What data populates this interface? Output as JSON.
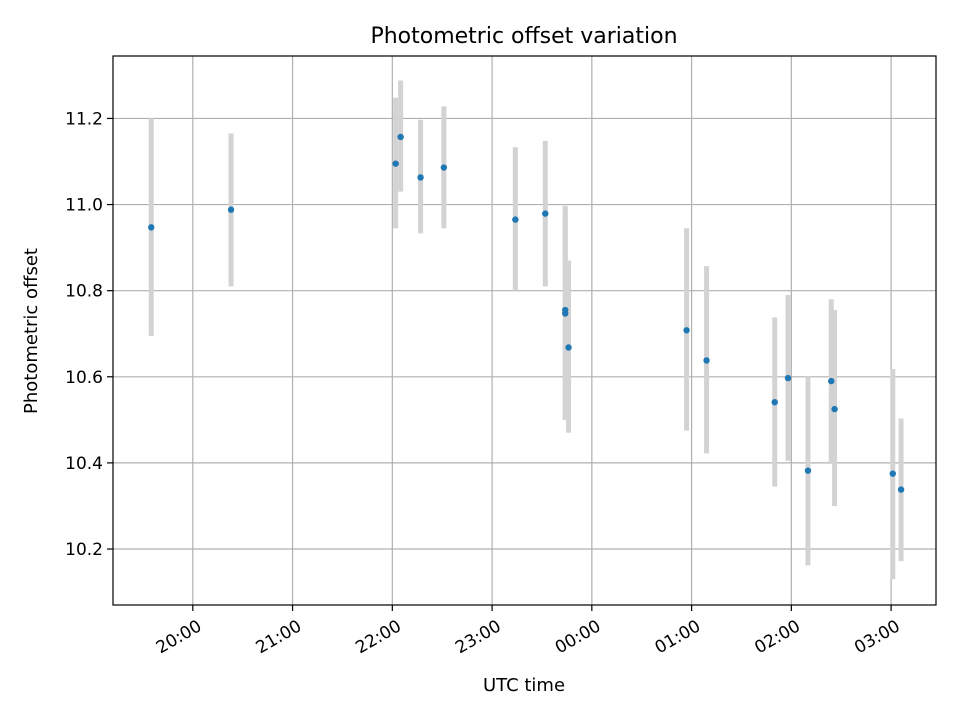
{
  "chart_data": {
    "type": "scatter",
    "title": "Photometric offset variation",
    "xlabel": "UTC time",
    "ylabel": "Photometric offset",
    "x_tick_labels": [
      "20:00",
      "21:00",
      "22:00",
      "23:00",
      "00:00",
      "01:00",
      "02:00",
      "03:00"
    ],
    "y_tick_labels": [
      "10.2",
      "10.4",
      "10.6",
      "10.8",
      "11.0",
      "11.2"
    ],
    "y_ticks": [
      10.2,
      10.4,
      10.6,
      10.8,
      11.0,
      11.2
    ],
    "ylim": [
      10.07,
      11.345
    ],
    "xlim": [
      "19:12",
      "03:27"
    ],
    "grid": true,
    "marker_color": "#1f77b4",
    "errorbar_color": "#d3d3d3",
    "points": [
      {
        "x": "19:35",
        "y": 10.947,
        "ylow": 10.695,
        "yhigh": 11.2
      },
      {
        "x": "20:23",
        "y": 10.988,
        "ylow": 10.81,
        "yhigh": 11.165
      },
      {
        "x": "22:02",
        "y": 11.095,
        "ylow": 10.945,
        "yhigh": 11.248
      },
      {
        "x": "22:05",
        "y": 11.157,
        "ylow": 11.03,
        "yhigh": 11.288
      },
      {
        "x": "22:17",
        "y": 11.063,
        "ylow": 10.933,
        "yhigh": 11.197
      },
      {
        "x": "22:31",
        "y": 11.086,
        "ylow": 10.945,
        "yhigh": 11.228
      },
      {
        "x": "23:14",
        "y": 10.965,
        "ylow": 10.8,
        "yhigh": 11.133
      },
      {
        "x": "23:32",
        "y": 10.979,
        "ylow": 10.81,
        "yhigh": 11.148
      },
      {
        "x": "23:44",
        "y": 10.755,
        "ylow": 10.5,
        "yhigh": 10.997
      },
      {
        "x": "23:44",
        "y": 10.747,
        "ylow": 10.5,
        "yhigh": 10.99
      },
      {
        "x": "23:46",
        "y": 10.668,
        "ylow": 10.47,
        "yhigh": 10.87
      },
      {
        "x": "00:57",
        "y": 10.708,
        "ylow": 10.475,
        "yhigh": 10.945
      },
      {
        "x": "01:09",
        "y": 10.638,
        "ylow": 10.422,
        "yhigh": 10.857
      },
      {
        "x": "01:50",
        "y": 10.541,
        "ylow": 10.345,
        "yhigh": 10.738
      },
      {
        "x": "01:58",
        "y": 10.597,
        "ylow": 10.405,
        "yhigh": 10.79
      },
      {
        "x": "02:10",
        "y": 10.382,
        "ylow": 10.162,
        "yhigh": 10.6
      },
      {
        "x": "02:24",
        "y": 10.59,
        "ylow": 10.4,
        "yhigh": 10.78
      },
      {
        "x": "02:26",
        "y": 10.525,
        "ylow": 10.3,
        "yhigh": 10.755
      },
      {
        "x": "03:01",
        "y": 10.375,
        "ylow": 10.13,
        "yhigh": 10.618
      },
      {
        "x": "03:06",
        "y": 10.338,
        "ylow": 10.172,
        "yhigh": 10.503
      }
    ]
  }
}
